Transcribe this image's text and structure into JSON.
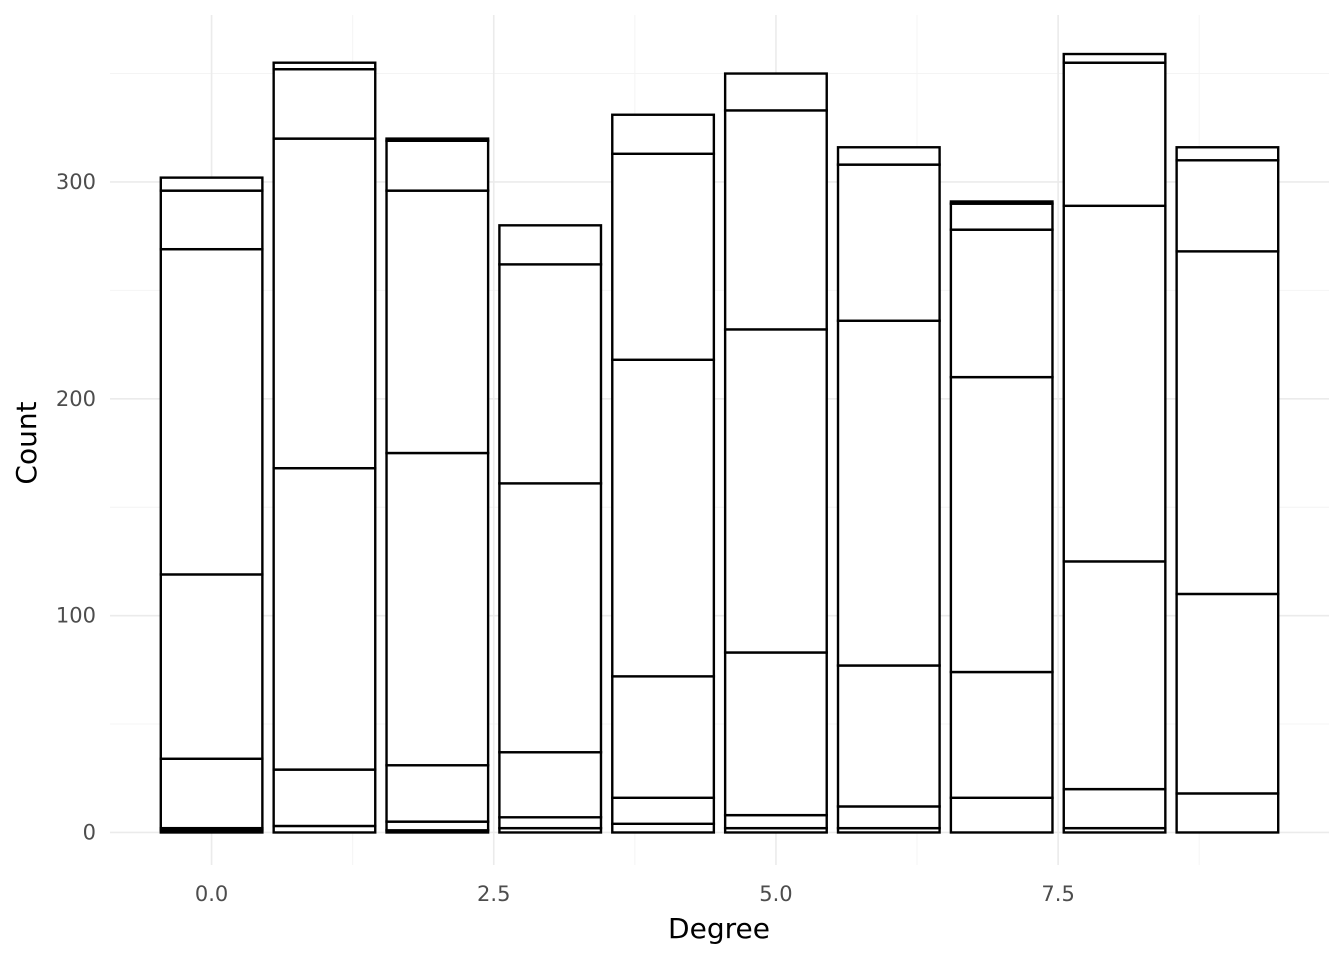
{
  "chart_data": {
    "type": "bar",
    "stacked": true,
    "xlabel": "Degree",
    "ylabel": "Count",
    "x": [
      0,
      1,
      2,
      3,
      4,
      5,
      6,
      7,
      8,
      9
    ],
    "xlim": [
      -0.9,
      9.9
    ],
    "ylim": [
      -15,
      377
    ],
    "x_ticks": [
      0,
      2.5,
      5,
      7.5
    ],
    "x_tick_labels": [
      "0.0",
      "2.5",
      "5.0",
      "7.5"
    ],
    "x_minor_ticks": [
      1.25,
      3.75,
      6.25,
      8.75
    ],
    "y_ticks": [
      0,
      100,
      200,
      300
    ],
    "y_tick_labels": [
      "0",
      "100",
      "200",
      "300"
    ],
    "y_minor_ticks": [
      50,
      150,
      250,
      350
    ],
    "grid": true,
    "fill": "#ffffff",
    "outline": "#000000",
    "segment_boundaries": [
      [
        0,
        1,
        2,
        34,
        119,
        269,
        296,
        302
      ],
      [
        0,
        3,
        29,
        168,
        320,
        352,
        355
      ],
      [
        0,
        1,
        5,
        31,
        175,
        296,
        319,
        320
      ],
      [
        0,
        2,
        7,
        37,
        161,
        262,
        280
      ],
      [
        0,
        4,
        16,
        72,
        218,
        313,
        331
      ],
      [
        0,
        2,
        8,
        83,
        232,
        333,
        350
      ],
      [
        0,
        2,
        12,
        77,
        236,
        308,
        316
      ],
      [
        0,
        16,
        74,
        210,
        278,
        290,
        291
      ],
      [
        0,
        2,
        20,
        125,
        289,
        355,
        359
      ],
      [
        0,
        18,
        110,
        268,
        310,
        316
      ]
    ],
    "totals": [
      302,
      355,
      320,
      280,
      331,
      350,
      316,
      291,
      359,
      316
    ]
  }
}
